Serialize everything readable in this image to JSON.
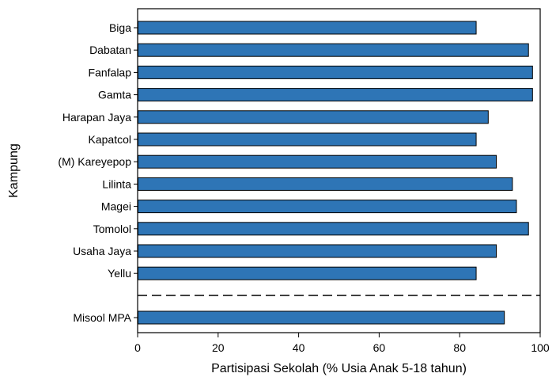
{
  "chart_data": {
    "type": "bar",
    "orientation": "horizontal",
    "xlabel": "Partisipasi Sekolah (% Usia Anak 5-18 tahun)",
    "ylabel": "Kampung",
    "xlim": [
      0,
      100
    ],
    "xticks": [
      0,
      20,
      40,
      60,
      80,
      100
    ],
    "bar_color": "#2e75b6",
    "categories": [
      "Biga",
      "Dabatan",
      "Fanfalap",
      "Gamta",
      "Harapan Jaya",
      "Kapatcol",
      "(M) Kareyepop",
      "Lilinta",
      "Magei",
      "Tomolol",
      "Usaha Jaya",
      "Yellu"
    ],
    "values": [
      84,
      97,
      98,
      98,
      87,
      84,
      89,
      93,
      94,
      97,
      89,
      84
    ],
    "separator": "dashed",
    "summary": {
      "category": "Misool MPA",
      "value": 91
    },
    "grid": false
  }
}
